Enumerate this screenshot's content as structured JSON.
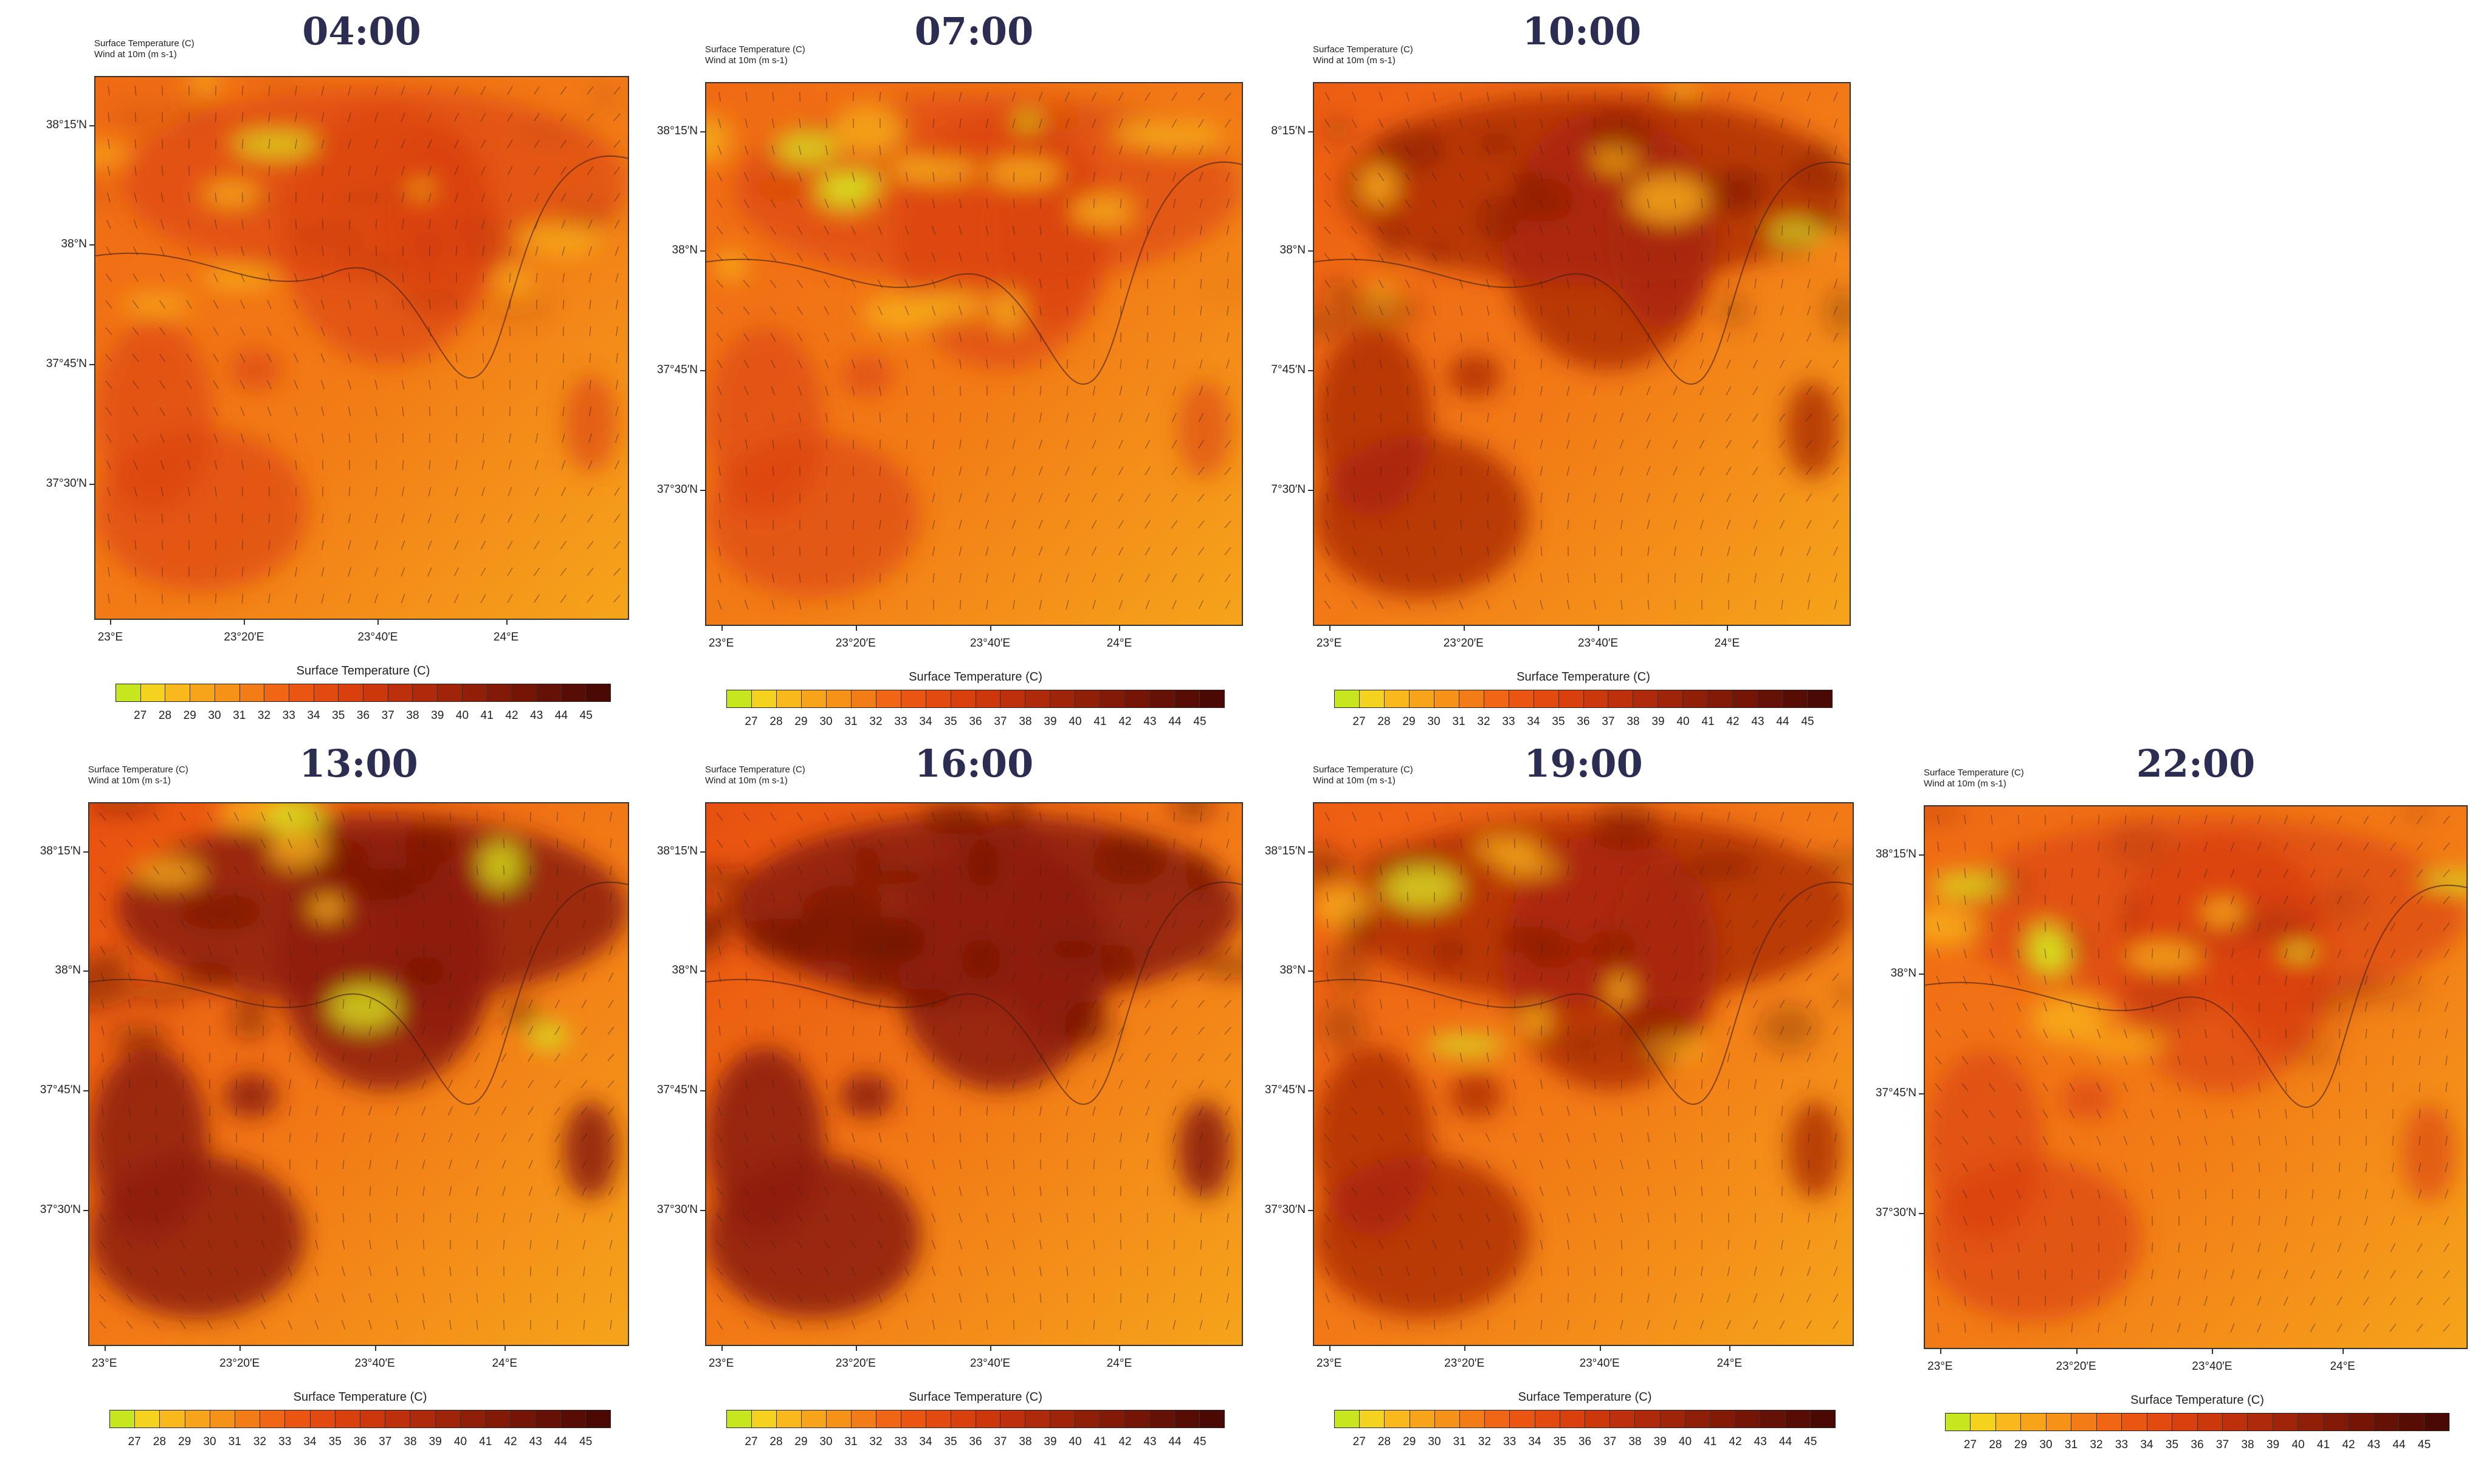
{
  "panels": [
    {
      "time": "04:00",
      "intensity": 0.15
    },
    {
      "time": "07:00",
      "intensity": 0.05
    },
    {
      "time": "10:00",
      "intensity": 0.55
    },
    {
      "time": "13:00",
      "intensity": 0.8
    },
    {
      "time": "16:00",
      "intensity": 0.85
    },
    {
      "time": "19:00",
      "intensity": 0.55
    },
    {
      "time": "22:00",
      "intensity": 0.25
    }
  ],
  "header": {
    "line1": "Surface Temperature   (C)",
    "line2": "Wind at 10m   (m s-1)"
  },
  "lat_labels": [
    "38°15′N",
    "38°N",
    "37°45′N",
    "37°30′N"
  ],
  "lat_labels_clipped": [
    "8°15′N",
    "38°N",
    "7°45′N",
    "7°30′N"
  ],
  "lon_labels": [
    "23°E",
    "23°20′E",
    "23°40′E",
    "24°E"
  ],
  "colorbar": {
    "title": "Surface Temperature  (C)",
    "labels": [
      "27",
      "28",
      "29",
      "30",
      "31",
      "32",
      "33",
      "34",
      "35",
      "36",
      "37",
      "38",
      "39",
      "40",
      "41",
      "42",
      "43",
      "44",
      "45"
    ],
    "colors": [
      "#c8e61e",
      "#f5d21e",
      "#f9b91c",
      "#f8a41a",
      "#f79218",
      "#f47c16",
      "#f06614",
      "#ea5512",
      "#e34a10",
      "#d9400e",
      "#cc370c",
      "#be300b",
      "#af2a0a",
      "#a02409",
      "#901f08",
      "#821a07",
      "#741506",
      "#661105",
      "#580d04",
      "#4a0903"
    ]
  }
}
